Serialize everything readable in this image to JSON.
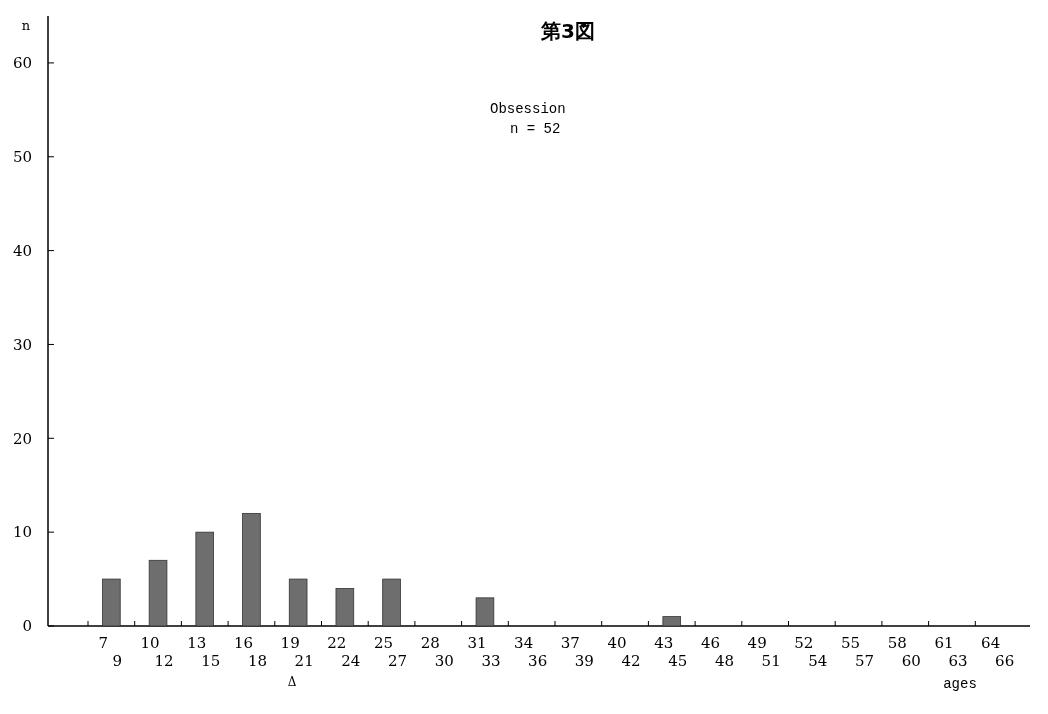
{
  "chart_data": {
    "type": "bar",
    "title": "第3図",
    "ylabel": "n",
    "xlabel": "ages",
    "categories": [
      "7\n9",
      "10\n12",
      "13\n15",
      "16\n18",
      "19\n21",
      "22\n24",
      "25\n27",
      "28\n30",
      "31\n33",
      "34\n36",
      "37\n39",
      "40\n42",
      "43\n45",
      "46\n48",
      "49\n51",
      "52\n54",
      "55\n57",
      "58\n60",
      "61\n63",
      "64\n66"
    ],
    "values": [
      5,
      7,
      10,
      12,
      5,
      4,
      5,
      0,
      3,
      0,
      0,
      0,
      1,
      0,
      0,
      0,
      0,
      0,
      0,
      0
    ],
    "color": "#6e6e6e",
    "ylim": [
      0,
      65
    ],
    "yticks": [
      0,
      10,
      20,
      30,
      40,
      50,
      60
    ],
    "grid": false,
    "annotations": [
      "Obsession",
      "n = 52",
      "Δ"
    ]
  }
}
